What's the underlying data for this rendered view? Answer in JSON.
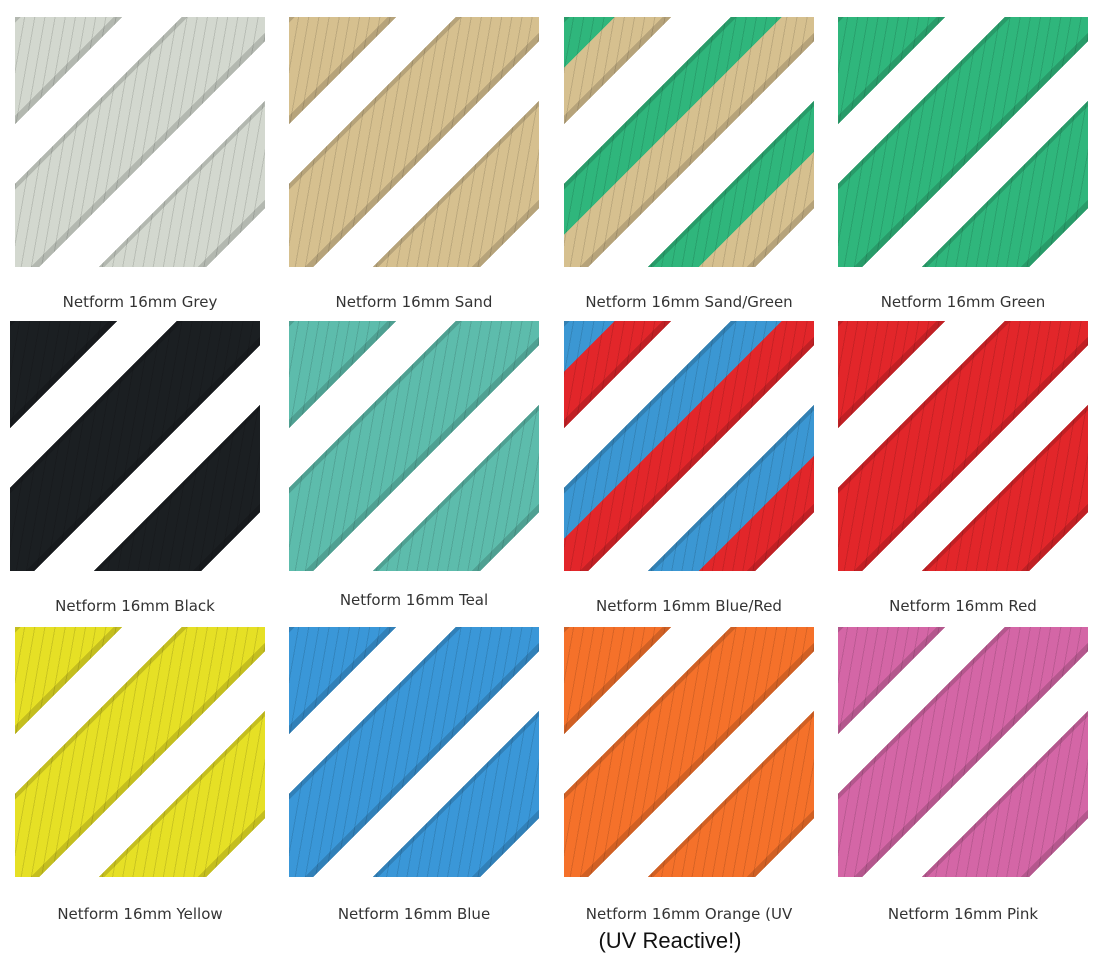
{
  "products": [
    {
      "label": "Netform 16mm Grey",
      "colors": [
        "#d3d8cf"
      ]
    },
    {
      "label": "Netform 16mm Sand",
      "colors": [
        "#d6c08f"
      ]
    },
    {
      "label": "Netform 16mm Sand/Green",
      "colors": [
        "#2fb67c",
        "#d6c08f"
      ]
    },
    {
      "label": "Netform 16mm Green",
      "colors": [
        "#2fb67c"
      ]
    },
    {
      "label": "Netform 16mm Black",
      "colors": [
        "#1b1f22"
      ]
    },
    {
      "label": "Netform 16mm Teal",
      "colors": [
        "#5dbcac"
      ]
    },
    {
      "label": "Netform 16mm Blue/Red",
      "colors": [
        "#3b97d3",
        "#e2262a"
      ]
    },
    {
      "label": "Netform 16mm Red",
      "colors": [
        "#e2262a"
      ]
    },
    {
      "label": "Netform 16mm Yellow",
      "colors": [
        "#e6e025"
      ]
    },
    {
      "label": "Netform 16mm Blue",
      "colors": [
        "#3a97d8"
      ]
    },
    {
      "label": "Netform 16mm Orange (UV",
      "colors": [
        "#f5712a"
      ]
    },
    {
      "label": "Netform 16mm Pink",
      "colors": [
        "#d466a6"
      ]
    }
  ],
  "note": "(UV Reactive!)"
}
